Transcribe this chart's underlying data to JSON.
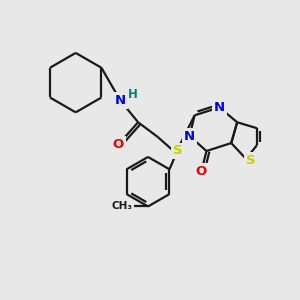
{
  "background_color": "#e8e8e8",
  "bond_color": "#1a1a1a",
  "atom_colors": {
    "N": "#0000ee",
    "O": "#ee0000",
    "S": "#cccc00",
    "H": "#008080",
    "C": "#1a1a1a"
  },
  "figsize": [
    3.0,
    3.0
  ],
  "dpi": 100,
  "lw": 1.6
}
